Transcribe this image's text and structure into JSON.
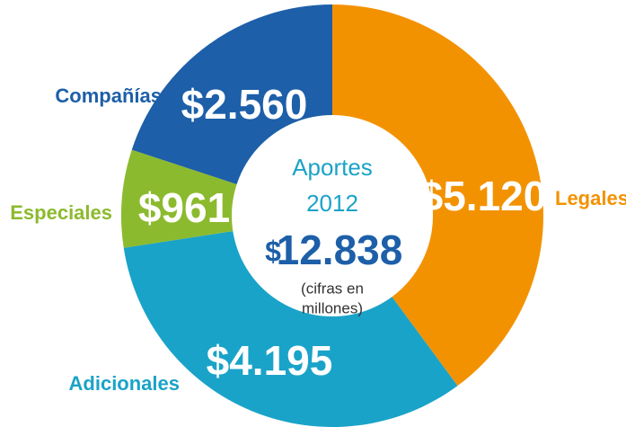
{
  "chart_data": {
    "type": "donut",
    "center_title": "Aportes",
    "center_year": "2012",
    "total_currency": "$",
    "total_amount": "12.838",
    "center_note_1": "(cifras en",
    "center_note_2": "millones)",
    "categories": [
      "Legales",
      "Adicionales",
      "Especiales",
      "Compañías"
    ],
    "values": [
      5120,
      4195,
      961,
      2560
    ],
    "value_labels": [
      "$5.120",
      "$4.195",
      "$961",
      "$2.560"
    ],
    "colors": [
      "#f39200",
      "#1aa3c8",
      "#8cba2e",
      "#1d5fa8"
    ]
  }
}
